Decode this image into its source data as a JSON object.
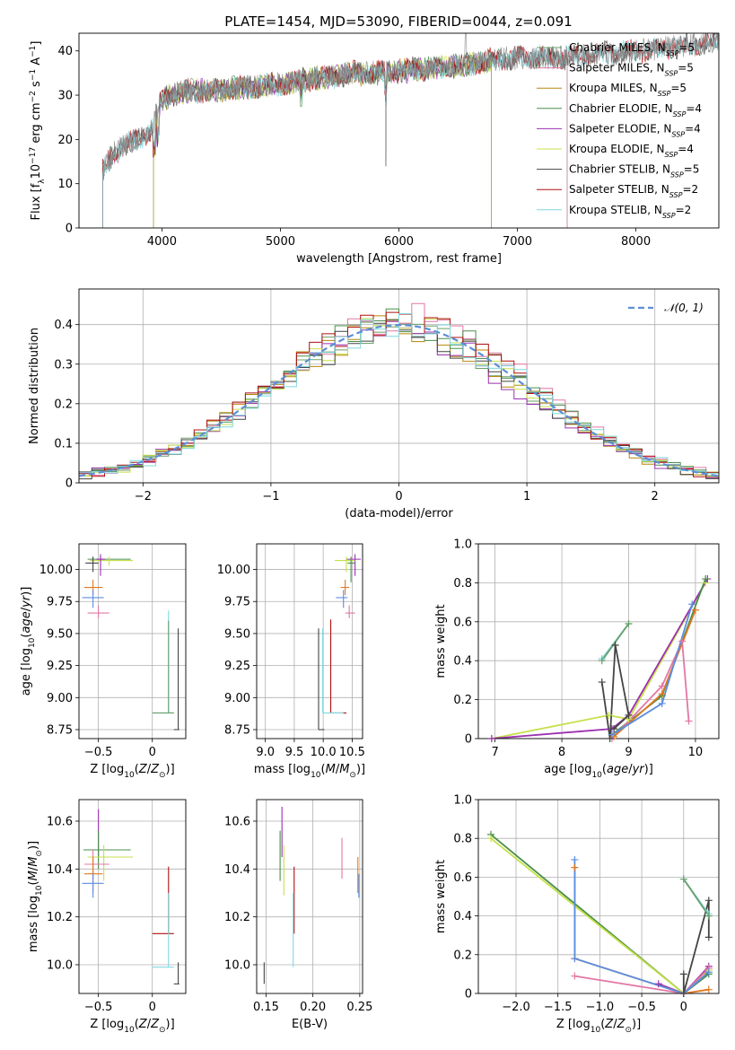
{
  "title": "PLATE=1454, MJD=53090, FIBERID=0044, z=0.091",
  "colors": {
    "Chabrier MILES": "#6a9f6a",
    "Salpeter MILES": "#e377a5",
    "Kroupa MILES": "#b8860b",
    "Chabrier ELODIE": "#4a8f4a",
    "Salpeter ELODIE": "#9b30b0",
    "Kroupa ELODIE": "#c6e04a",
    "Chabrier STELIB": "#444444",
    "Salpeter STELIB": "#b01010",
    "Kroupa STELIB": "#7fd8e0",
    "blue": "#5b8de0",
    "orange": "#e07820",
    "gaussian": "#5b8fd6"
  },
  "legend": [
    {
      "name": "Chabrier MILES",
      "nssp": "5"
    },
    {
      "name": "Salpeter MILES",
      "nssp": "5"
    },
    {
      "name": "Kroupa MILES",
      "nssp": "5"
    },
    {
      "name": "Chabrier ELODIE",
      "nssp": "4"
    },
    {
      "name": "Salpeter ELODIE",
      "nssp": "4"
    },
    {
      "name": "Kroupa ELODIE",
      "nssp": "4"
    },
    {
      "name": "Chabrier STELIB",
      "nssp": "5"
    },
    {
      "name": "Salpeter STELIB",
      "nssp": "2"
    },
    {
      "name": "Kroupa STELIB",
      "nssp": "2"
    }
  ],
  "chart_data": [
    {
      "type": "line",
      "id": "spectrum",
      "title": "PLATE=1454, MJD=53090, FIBERID=0044, z=0.091",
      "xlabel": "wavelength [Angstrom, rest frame]",
      "ylabel": "Flux [f_λ 10^-17 erg cm^-2 s^-1 A^-1]",
      "xlim": [
        3300,
        8700
      ],
      "ylim": [
        0,
        44
      ],
      "xticks": [
        4000,
        5000,
        6000,
        7000,
        8000
      ],
      "yticks": [
        0,
        10,
        20,
        30,
        40
      ],
      "grid": false,
      "legend_position": "top-right",
      "envelope": {
        "x": [
          3500,
          3600,
          3700,
          3800,
          3900,
          4000,
          4100,
          4200,
          4400,
          4600,
          4800,
          5000,
          5200,
          5400,
          5600,
          5800,
          6000,
          6200,
          6400,
          6600,
          6800,
          7000,
          7200,
          7400,
          7600,
          7800,
          8000,
          8200,
          8400,
          8600,
          8700
        ],
        "y": [
          13,
          17,
          19,
          20,
          22,
          29,
          30,
          31,
          31,
          31.5,
          32,
          32.5,
          33.5,
          34,
          35,
          35,
          35.5,
          36,
          36.5,
          37,
          38,
          38.5,
          38.5,
          38.5,
          39,
          39.5,
          40,
          40.5,
          41,
          42,
          42.5
        ]
      }
    },
    {
      "type": "bar",
      "id": "residuals",
      "xlabel": "(data-model)/error",
      "ylabel": "Normed distribution",
      "xlim": [
        -2.5,
        2.5
      ],
      "ylim": [
        0,
        0.49
      ],
      "xticks": [
        -2,
        -1,
        0,
        1,
        2
      ],
      "yticks": [
        0.0,
        0.1,
        0.2,
        0.3,
        0.4
      ],
      "grid": true,
      "bin_width": 0.1,
      "legend": {
        "label": "𝒩(0, 1)",
        "position": "top-right"
      },
      "series": [
        {
          "color": "Chabrier MILES",
          "offset": 0.02,
          "scale": 1.0
        },
        {
          "color": "Salpeter MILES",
          "offset": -0.03,
          "scale": 1.05
        },
        {
          "color": "Kroupa MILES",
          "offset": 0.03,
          "scale": 0.98
        },
        {
          "color": "Chabrier ELODIE",
          "offset": -0.01,
          "scale": 1.02
        },
        {
          "color": "Salpeter ELODIE",
          "offset": 0.04,
          "scale": 0.96
        },
        {
          "color": "Kroupa ELODIE",
          "offset": -0.02,
          "scale": 1.01
        },
        {
          "color": "Chabrier STELIB",
          "offset": 0.0,
          "scale": 0.97
        },
        {
          "color": "Salpeter STELIB",
          "offset": 0.01,
          "scale": 1.03
        },
        {
          "color": "Kroupa STELIB",
          "offset": -0.04,
          "scale": 0.99
        }
      ]
    },
    {
      "type": "scatter",
      "id": "age_vs_Z",
      "xlabel": "Z [log10(Z/Z⊙)]",
      "ylabel": "age [log10(age/yr)]",
      "xlim": [
        -0.68,
        0.31
      ],
      "ylim": [
        8.68,
        10.2
      ],
      "xticks": [
        -0.5,
        0.0
      ],
      "yticks": [
        8.75,
        9.0,
        9.25,
        9.5,
        9.75,
        10.0
      ],
      "grid": true,
      "points": [
        {
          "c": "Chabrier ELODIE",
          "x": -0.48,
          "y": 10.08,
          "xe": [
            -0.6,
            -0.2
          ],
          "ye": [
            10.02,
            10.1
          ]
        },
        {
          "c": "Kroupa ELODIE",
          "x": -0.4,
          "y": 10.07,
          "xe": [
            -0.58,
            -0.18
          ],
          "ye": [
            10.03,
            10.1
          ]
        },
        {
          "c": "Salpeter ELODIE",
          "x": -0.48,
          "y": 10.08,
          "xe": [
            -0.52,
            -0.44
          ],
          "ye": [
            9.95,
            10.12
          ]
        },
        {
          "c": "Chabrier STELIB",
          "x": -0.55,
          "y": 10.05,
          "xe": [
            -0.62,
            -0.5
          ],
          "ye": [
            9.98,
            10.1
          ]
        },
        {
          "c": "orange",
          "x": -0.55,
          "y": 9.86,
          "xe": [
            -0.63,
            -0.46
          ],
          "ye": [
            9.8,
            9.92
          ]
        },
        {
          "c": "blue",
          "x": -0.55,
          "y": 9.78,
          "xe": [
            -0.65,
            -0.45
          ],
          "ye": [
            9.7,
            9.84
          ]
        },
        {
          "c": "Salpeter MILES",
          "x": -0.5,
          "y": 9.66,
          "xe": [
            -0.6,
            -0.4
          ],
          "ye": [
            9.62,
            9.72
          ]
        },
        {
          "c": "Kroupa STELIB",
          "x": 0.15,
          "y": 8.88,
          "xe": [
            0.0,
            0.2
          ],
          "ye": [
            8.88,
            9.68
          ]
        },
        {
          "c": "Chabrier MILES",
          "x": 0.15,
          "y": 8.88,
          "xe": [
            0.0,
            0.2
          ],
          "ye": [
            8.88,
            9.6
          ]
        },
        {
          "c": "Chabrier STELIB",
          "x": 0.24,
          "y": 8.75,
          "xe": [
            0.2,
            0.25
          ],
          "ye": [
            8.75,
            9.54
          ]
        }
      ]
    },
    {
      "type": "scatter",
      "id": "age_vs_mass",
      "xlabel": "mass [log10(M/M⊙)]",
      "ylabel": "",
      "xlim": [
        8.85,
        10.68
      ],
      "ylim": [
        8.68,
        10.2
      ],
      "xticks": [
        9.0,
        9.5,
        10.0,
        10.5
      ],
      "yticks": [
        8.75,
        9.0,
        9.25,
        9.5,
        9.75,
        10.0
      ],
      "grid": true,
      "points": [
        {
          "c": "Salpeter ELODIE",
          "x": 10.55,
          "y": 10.08,
          "xe": [
            10.4,
            10.65
          ],
          "ye": [
            9.95,
            10.12
          ]
        },
        {
          "c": "Kroupa ELODIE",
          "x": 10.4,
          "y": 10.07,
          "xe": [
            10.2,
            10.55
          ],
          "ye": [
            9.98,
            10.1
          ]
        },
        {
          "c": "Chabrier ELODIE",
          "x": 10.48,
          "y": 10.05,
          "xe": [
            10.42,
            10.55
          ],
          "ye": [
            9.9,
            10.1
          ]
        },
        {
          "c": "orange",
          "x": 10.38,
          "y": 9.86,
          "xe": [
            10.3,
            10.45
          ],
          "ye": [
            9.8,
            9.92
          ]
        },
        {
          "c": "blue",
          "x": 10.35,
          "y": 9.78,
          "xe": [
            10.22,
            10.42
          ],
          "ye": [
            9.7,
            9.84
          ]
        },
        {
          "c": "Salpeter MILES",
          "x": 10.45,
          "y": 9.66,
          "xe": [
            10.38,
            10.55
          ],
          "ye": [
            9.62,
            9.72
          ]
        },
        {
          "c": "Salpeter STELIB",
          "x": 10.13,
          "y": 8.88,
          "xe": [
            10.13,
            10.4
          ],
          "ye": [
            8.88,
            9.61
          ]
        },
        {
          "c": "Kroupa STELIB",
          "x": 9.99,
          "y": 8.88,
          "xe": [
            9.99,
            10.35
          ],
          "ye": [
            8.88,
            9.54
          ]
        },
        {
          "c": "Chabrier STELIB",
          "x": 9.92,
          "y": 8.75,
          "xe": [
            9.92,
            10.02
          ],
          "ye": [
            8.75,
            9.54
          ]
        }
      ]
    },
    {
      "type": "line",
      "id": "weight_vs_age",
      "xlabel": "age [log10(age/yr)]",
      "ylabel": "mass weight",
      "xlim": [
        6.75,
        10.35
      ],
      "ylim": [
        0,
        1.0
      ],
      "xticks": [
        7,
        8,
        9,
        10
      ],
      "yticks": [
        0.0,
        0.2,
        0.4,
        0.6,
        0.8,
        1.0
      ],
      "grid": true,
      "series": [
        {
          "c": "Kroupa ELODIE",
          "x": [
            6.95,
            8.7,
            9.0,
            10.15
          ],
          "y": [
            0.0,
            0.12,
            0.1,
            0.8
          ]
        },
        {
          "c": "Salpeter ELODIE",
          "x": [
            6.95,
            8.75,
            9.0,
            10.18
          ],
          "y": [
            0.0,
            0.05,
            0.12,
            0.82
          ]
        },
        {
          "c": "Chabrier ELODIE",
          "x": [
            8.75,
            9.5,
            10.15
          ],
          "y": [
            0.02,
            0.22,
            0.82
          ]
        },
        {
          "c": "Salpeter MILES",
          "x": [
            8.75,
            9.5,
            9.8,
            9.9
          ],
          "y": [
            0.0,
            0.27,
            0.5,
            0.09
          ]
        },
        {
          "c": "orange",
          "x": [
            8.78,
            9.5,
            10.0
          ],
          "y": [
            0.01,
            0.23,
            0.66
          ]
        },
        {
          "c": "blue",
          "x": [
            8.75,
            9.5,
            9.95
          ],
          "y": [
            0.02,
            0.18,
            0.69
          ]
        },
        {
          "c": "Chabrier STELIB",
          "x": [
            8.6,
            8.72,
            8.8,
            9.0,
            8.78
          ],
          "y": [
            0.29,
            0.0,
            0.48,
            0.12,
            0.05
          ]
        },
        {
          "c": "Kroupa STELIB",
          "x": [
            8.6,
            9.0
          ],
          "y": [
            0.41,
            0.59
          ]
        },
        {
          "c": "Chabrier MILES",
          "x": [
            8.6,
            9.0
          ],
          "y": [
            0.4,
            0.59
          ]
        }
      ]
    },
    {
      "type": "scatter",
      "id": "mass_vs_Z",
      "xlabel": "Z [log10(Z/Z⊙)]",
      "ylabel": "mass [log10(M/M⊙)]",
      "xlim": [
        -0.68,
        0.31
      ],
      "ylim": [
        9.88,
        10.69
      ],
      "xticks": [
        -0.5,
        0.0
      ],
      "yticks": [
        10.0,
        10.2,
        10.4,
        10.6
      ],
      "grid": true,
      "points": [
        {
          "c": "Salpeter ELODIE",
          "x": -0.5,
          "y": 10.55,
          "xe": [
            -0.5,
            -0.5
          ],
          "ye": [
            10.45,
            10.65
          ]
        },
        {
          "c": "Chabrier ELODIE",
          "x": -0.5,
          "y": 10.48,
          "xe": [
            -0.64,
            -0.2
          ],
          "ye": [
            10.4,
            10.56
          ]
        },
        {
          "c": "Kroupa ELODIE",
          "x": -0.45,
          "y": 10.45,
          "xe": [
            -0.6,
            -0.18
          ],
          "ye": [
            10.35,
            10.5
          ]
        },
        {
          "c": "Salpeter MILES",
          "x": -0.55,
          "y": 10.42,
          "xe": [
            -0.63,
            -0.4
          ],
          "ye": [
            10.36,
            10.48
          ]
        },
        {
          "c": "orange",
          "x": -0.55,
          "y": 10.38,
          "xe": [
            -0.63,
            -0.46
          ],
          "ye": [
            10.3,
            10.45
          ]
        },
        {
          "c": "blue",
          "x": -0.55,
          "y": 10.34,
          "xe": [
            -0.65,
            -0.45
          ],
          "ye": [
            10.28,
            10.38
          ]
        },
        {
          "c": "Salpeter STELIB",
          "x": 0.15,
          "y": 10.13,
          "xe": [
            0.0,
            0.2
          ],
          "ye": [
            10.13,
            10.41
          ]
        },
        {
          "c": "Kroupa STELIB",
          "x": 0.15,
          "y": 9.99,
          "xe": [
            0.0,
            0.2
          ],
          "ye": [
            9.99,
            10.3
          ]
        },
        {
          "c": "Chabrier STELIB",
          "x": 0.24,
          "y": 9.92,
          "xe": [
            0.2,
            0.25
          ],
          "ye": [
            9.92,
            10.01
          ]
        }
      ]
    },
    {
      "type": "scatter",
      "id": "mass_vs_EBV",
      "xlabel": "E(B-V)",
      "ylabel": "",
      "xlim": [
        0.14,
        0.253
      ],
      "ylim": [
        9.88,
        10.69
      ],
      "xticks": [
        0.15,
        0.2,
        0.25
      ],
      "yticks": [
        10.0,
        10.2,
        10.4,
        10.6
      ],
      "grid": true,
      "points": [
        {
          "c": "Chabrier STELIB",
          "x": 0.148,
          "y": 9.92,
          "ye": [
            9.92,
            10.01
          ]
        },
        {
          "c": "Chabrier ELODIE",
          "x": 0.165,
          "y": 10.45,
          "ye": [
            10.35,
            10.56
          ]
        },
        {
          "c": "Salpeter ELODIE",
          "x": 0.167,
          "y": 10.55,
          "ye": [
            10.45,
            10.66
          ]
        },
        {
          "c": "Kroupa ELODIE",
          "x": 0.169,
          "y": 10.4,
          "ye": [
            10.29,
            10.5
          ]
        },
        {
          "c": "Salpeter STELIB",
          "x": 0.18,
          "y": 10.3,
          "ye": [
            10.13,
            10.41
          ]
        },
        {
          "c": "Kroupa STELIB",
          "x": 0.179,
          "y": 10.1,
          "ye": [
            9.99,
            10.3
          ]
        },
        {
          "c": "Salpeter MILES",
          "x": 0.231,
          "y": 10.42,
          "ye": [
            10.36,
            10.53
          ]
        },
        {
          "c": "orange",
          "x": 0.248,
          "y": 10.38,
          "ye": [
            10.3,
            10.45
          ]
        },
        {
          "c": "blue",
          "x": 0.249,
          "y": 10.34,
          "ye": [
            10.28,
            10.38
          ]
        }
      ]
    },
    {
      "type": "line",
      "id": "weight_vs_Z",
      "xlabel": "Z [log10(Z/Z⊙)]",
      "ylabel": "mass weight",
      "xlim": [
        -2.45,
        0.42
      ],
      "ylim": [
        0,
        1.0
      ],
      "xticks": [
        -2.0,
        -1.5,
        -1.0,
        -0.5,
        0.0
      ],
      "yticks": [
        0.0,
        0.2,
        0.4,
        0.6,
        0.8,
        1.0
      ],
      "grid": true,
      "series": [
        {
          "c": "Chabrier ELODIE",
          "x": [
            -2.3,
            0.0,
            0.3
          ],
          "y": [
            0.82,
            0.0,
            0.1
          ]
        },
        {
          "c": "Kroupa ELODIE",
          "x": [
            -2.3,
            0.0,
            0.3
          ],
          "y": [
            0.8,
            0.0,
            0.12
          ]
        },
        {
          "c": "Salpeter ELODIE",
          "x": [
            -0.3,
            0.0,
            0.3
          ],
          "y": [
            0.05,
            0.0,
            0.14
          ]
        },
        {
          "c": "Salpeter MILES",
          "x": [
            -1.3,
            0.0,
            0.3
          ],
          "y": [
            0.09,
            0.0,
            0.13
          ]
        },
        {
          "c": "orange",
          "x": [
            -1.3,
            -1.3,
            0.0,
            0.3
          ],
          "y": [
            0.65,
            0.18,
            0.0,
            0.02
          ]
        },
        {
          "c": "blue",
          "x": [
            -1.3,
            -1.3,
            0.0,
            0.3
          ],
          "y": [
            0.69,
            0.18,
            0.0,
            0.11
          ]
        },
        {
          "c": "Chabrier STELIB",
          "x": [
            0.0,
            0.0,
            0.3,
            0.3
          ],
          "y": [
            0.1,
            0.0,
            0.48,
            0.29
          ]
        },
        {
          "c": "Kroupa STELIB",
          "x": [
            0.0,
            0.3
          ],
          "y": [
            0.59,
            0.41
          ]
        },
        {
          "c": "Chabrier MILES",
          "x": [
            0.0,
            0.3
          ],
          "y": [
            0.59,
            0.4
          ]
        }
      ]
    }
  ]
}
